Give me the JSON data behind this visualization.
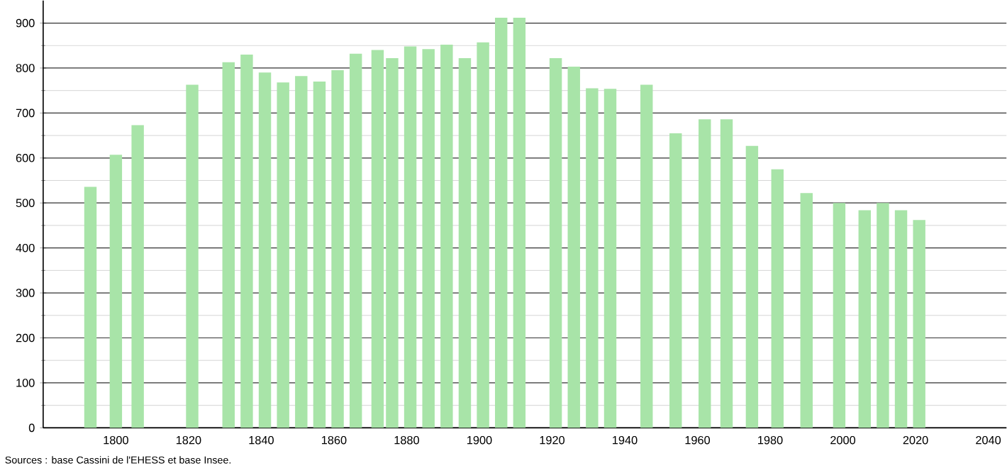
{
  "chart_data": {
    "type": "bar",
    "x": [
      1793,
      1800,
      1806,
      1821,
      1831,
      1836,
      1841,
      1846,
      1851,
      1856,
      1861,
      1866,
      1872,
      1876,
      1881,
      1886,
      1891,
      1896,
      1901,
      1906,
      1911,
      1921,
      1926,
      1931,
      1936,
      1946,
      1954,
      1962,
      1968,
      1975,
      1982,
      1990,
      1999,
      2006,
      2011,
      2016,
      2021
    ],
    "values": [
      536,
      607,
      673,
      763,
      813,
      830,
      790,
      768,
      782,
      770,
      795,
      832,
      840,
      822,
      848,
      842,
      852,
      822,
      857,
      912,
      912,
      822,
      803,
      755,
      754,
      763,
      655,
      686,
      686,
      627,
      575,
      522,
      500,
      484,
      500,
      484,
      462
    ],
    "color": "#a8e4a8",
    "xlim": [
      1780,
      2045
    ],
    "ylim": [
      0,
      950
    ],
    "xticks": [
      1800,
      1820,
      1840,
      1860,
      1880,
      1900,
      1920,
      1940,
      1960,
      1980,
      2000,
      2020,
      2040
    ],
    "yticks": [
      0,
      100,
      200,
      300,
      400,
      500,
      600,
      700,
      800,
      900
    ],
    "grid": "y",
    "annotations": [
      "Sources : base Cassini de l'EHESS et base Insee."
    ]
  }
}
